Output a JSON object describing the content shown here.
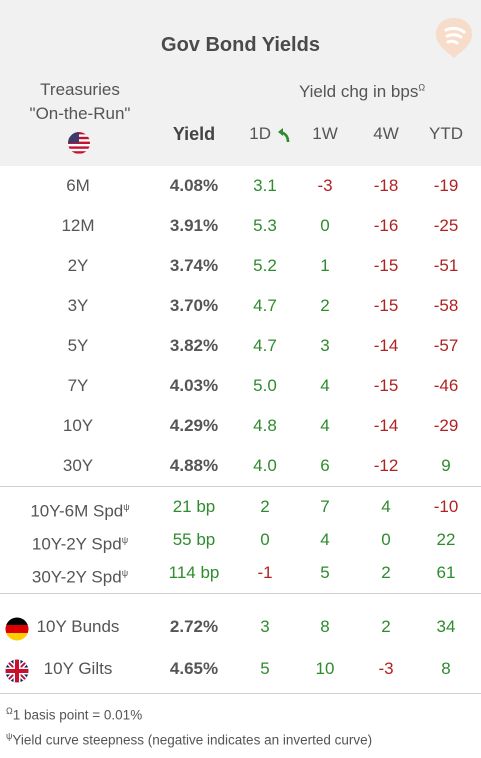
{
  "title": "Gov Bond Yields",
  "treasuries_line1": "Treasuries",
  "treasuries_line2": "\"On-the-Run\"",
  "yield_chg_label": "Yield chg in bps",
  "yield_chg_sup": "Ω",
  "columns": {
    "yield": "Yield",
    "d1": "1D",
    "w1": "1W",
    "w4": "4W",
    "ytd": "YTD"
  },
  "rows": [
    {
      "label": "6M",
      "yield": "4.08%",
      "d1": "3.1",
      "w1": "-3",
      "w4": "-18",
      "ytd": "-19"
    },
    {
      "label": "12M",
      "yield": "3.91%",
      "d1": "5.3",
      "w1": "0",
      "w4": "-16",
      "ytd": "-25"
    },
    {
      "label": "2Y",
      "yield": "3.74%",
      "d1": "5.2",
      "w1": "1",
      "w4": "-15",
      "ytd": "-51"
    },
    {
      "label": "3Y",
      "yield": "3.70%",
      "d1": "4.7",
      "w1": "2",
      "w4": "-15",
      "ytd": "-58"
    },
    {
      "label": "5Y",
      "yield": "3.82%",
      "d1": "4.7",
      "w1": "3",
      "w4": "-14",
      "ytd": "-57"
    },
    {
      "label": "7Y",
      "yield": "4.03%",
      "d1": "5.0",
      "w1": "4",
      "w4": "-15",
      "ytd": "-46"
    },
    {
      "label": "10Y",
      "yield": "4.29%",
      "d1": "4.8",
      "w1": "4",
      "w4": "-14",
      "ytd": "-29"
    },
    {
      "label": "30Y",
      "yield": "4.88%",
      "d1": "4.0",
      "w1": "6",
      "w4": "-12",
      "ytd": "9"
    }
  ],
  "spreads": [
    {
      "label": "10Y-6M Spd",
      "sup": "ψ",
      "bp": "21 bp",
      "d1": "2",
      "w1": "7",
      "w4": "4",
      "ytd": "-10"
    },
    {
      "label": "10Y-2Y Spd",
      "sup": "ψ",
      "bp": "55 bp",
      "d1": "0",
      "w1": "4",
      "w4": "0",
      "ytd": "22"
    },
    {
      "label": "30Y-2Y Spd",
      "sup": "ψ",
      "bp": "114 bp",
      "d1": "-1",
      "w1": "5",
      "w4": "2",
      "ytd": "61"
    }
  ],
  "international": [
    {
      "flag": "germany-flag-icon",
      "label": "10Y Bunds",
      "yield": "2.72%",
      "d1": "3",
      "w1": "8",
      "w4": "2",
      "ytd": "34"
    },
    {
      "flag": "uk-flag-icon",
      "label": "10Y Gilts",
      "yield": "4.65%",
      "d1": "5",
      "w1": "10",
      "w4": "-3",
      "ytd": "8"
    }
  ],
  "footnotes": [
    {
      "sup": "Ω",
      "text": "1 basis point = 0.01%"
    },
    {
      "sup": "ψ",
      "text": "Yield curve steepness (negative indicates an inverted curve)"
    }
  ],
  "colors": {
    "positive": "#2e8b2e",
    "negative": "#b22222",
    "header_bg": "#f1f1f1"
  }
}
